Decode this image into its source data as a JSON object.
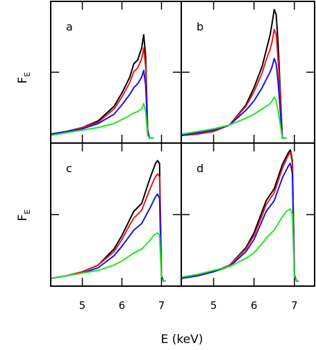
{
  "chart_data": {
    "type": "line",
    "xlabel": "E (keV)",
    "ylabel": {
      "main": "F",
      "sub": "E"
    },
    "xlim": [
      4.2,
      7.5
    ],
    "ylim": [
      0,
      1.0
    ],
    "xticks": [
      5,
      6,
      7
    ],
    "grid": false,
    "series_colors": [
      "#000000",
      "#e8191f",
      "#1414e6",
      "#22e622"
    ],
    "panels": [
      {
        "label": "a",
        "x": [
          4.2,
          4.6,
          5.0,
          5.4,
          5.8,
          6.0,
          6.2,
          6.3,
          6.4,
          6.5,
          6.55,
          6.6,
          6.65,
          6.7,
          6.8
        ],
        "series": [
          {
            "color": "#000000",
            "values": [
              0.03,
              0.05,
              0.08,
              0.13,
              0.24,
              0.34,
              0.46,
              0.56,
              0.59,
              0.68,
              0.78,
              0.62,
              0.06,
              0.0,
              0.0
            ]
          },
          {
            "color": "#e8191f",
            "values": [
              0.03,
              0.05,
              0.08,
              0.12,
              0.22,
              0.31,
              0.42,
              0.5,
              0.53,
              0.6,
              0.68,
              0.54,
              0.05,
              0.0,
              0.0
            ]
          },
          {
            "color": "#1414e6",
            "values": [
              0.03,
              0.05,
              0.07,
              0.11,
              0.18,
              0.25,
              0.33,
              0.38,
              0.41,
              0.46,
              0.51,
              0.4,
              0.04,
              0.0,
              0.0
            ]
          },
          {
            "color": "#22e622",
            "values": [
              0.02,
              0.04,
              0.06,
              0.08,
              0.11,
              0.14,
              0.17,
              0.19,
              0.2,
              0.22,
              0.26,
              0.2,
              0.02,
              0.0,
              0.0
            ]
          }
        ]
      },
      {
        "label": "b",
        "x": [
          4.2,
          4.6,
          5.0,
          5.4,
          5.8,
          6.0,
          6.2,
          6.3,
          6.4,
          6.45,
          6.5,
          6.55,
          6.6,
          6.7,
          6.8
        ],
        "series": [
          {
            "color": "#000000",
            "values": [
              0.02,
              0.03,
              0.05,
              0.1,
              0.25,
              0.38,
              0.54,
              0.66,
              0.78,
              0.87,
              0.97,
              0.93,
              0.7,
              0.0,
              0.0
            ]
          },
          {
            "color": "#e8191f",
            "values": [
              0.02,
              0.03,
              0.05,
              0.1,
              0.24,
              0.35,
              0.49,
              0.59,
              0.67,
              0.73,
              0.82,
              0.78,
              0.58,
              0.0,
              0.0
            ]
          },
          {
            "color": "#1414e6",
            "values": [
              0.02,
              0.04,
              0.06,
              0.1,
              0.21,
              0.28,
              0.38,
              0.44,
              0.5,
              0.54,
              0.6,
              0.56,
              0.41,
              0.0,
              0.0
            ]
          },
          {
            "color": "#22e622",
            "values": [
              0.03,
              0.05,
              0.07,
              0.1,
              0.15,
              0.18,
              0.22,
              0.24,
              0.26,
              0.28,
              0.31,
              0.28,
              0.2,
              0.0,
              0.0
            ]
          }
        ]
      },
      {
        "label": "c",
        "x": [
          4.2,
          4.6,
          5.0,
          5.4,
          5.8,
          6.0,
          6.2,
          6.3,
          6.5,
          6.7,
          6.8,
          6.85,
          6.9,
          6.95,
          7.0,
          7.05,
          7.1
        ],
        "series": [
          {
            "color": "#000000",
            "values": [
              0.02,
              0.04,
              0.07,
              0.12,
              0.24,
              0.34,
              0.46,
              0.52,
              0.58,
              0.76,
              0.84,
              0.88,
              0.9,
              0.88,
              0.04,
              0.0,
              0.0
            ]
          },
          {
            "color": "#e8191f",
            "values": [
              0.02,
              0.04,
              0.07,
              0.12,
              0.22,
              0.31,
              0.42,
              0.47,
              0.53,
              0.68,
              0.75,
              0.78,
              0.8,
              0.78,
              0.04,
              0.0,
              0.0
            ]
          },
          {
            "color": "#1414e6",
            "values": [
              0.02,
              0.04,
              0.06,
              0.1,
              0.19,
              0.26,
              0.34,
              0.38,
              0.43,
              0.54,
              0.6,
              0.63,
              0.65,
              0.62,
              0.03,
              0.0,
              0.0
            ]
          },
          {
            "color": "#22e622",
            "values": [
              0.02,
              0.04,
              0.06,
              0.08,
              0.12,
              0.15,
              0.19,
              0.21,
              0.24,
              0.3,
              0.34,
              0.35,
              0.36,
              0.34,
              0.02,
              0.0,
              0.0
            ]
          }
        ]
      },
      {
        "label": "d",
        "x": [
          4.2,
          4.6,
          5.0,
          5.4,
          5.8,
          6.0,
          6.2,
          6.3,
          6.5,
          6.7,
          6.8,
          6.85,
          6.9,
          6.95,
          7.0,
          7.05,
          7.1
        ],
        "series": [
          {
            "color": "#000000",
            "values": [
              0.02,
              0.04,
              0.07,
              0.12,
              0.25,
              0.36,
              0.52,
              0.6,
              0.69,
              0.87,
              0.93,
              0.96,
              0.98,
              0.9,
              0.05,
              0.0,
              0.0
            ]
          },
          {
            "color": "#e8191f",
            "values": [
              0.02,
              0.04,
              0.07,
              0.12,
              0.24,
              0.34,
              0.49,
              0.57,
              0.66,
              0.84,
              0.91,
              0.94,
              0.96,
              0.88,
              0.05,
              0.0,
              0.0
            ]
          },
          {
            "color": "#1414e6",
            "values": [
              0.02,
              0.04,
              0.07,
              0.11,
              0.22,
              0.31,
              0.45,
              0.52,
              0.6,
              0.77,
              0.83,
              0.86,
              0.88,
              0.8,
              0.04,
              0.0,
              0.0
            ]
          },
          {
            "color": "#22e622",
            "values": [
              0.03,
              0.05,
              0.08,
              0.11,
              0.17,
              0.21,
              0.28,
              0.32,
              0.38,
              0.48,
              0.52,
              0.53,
              0.54,
              0.5,
              0.03,
              0.0,
              0.0
            ]
          }
        ]
      }
    ]
  }
}
